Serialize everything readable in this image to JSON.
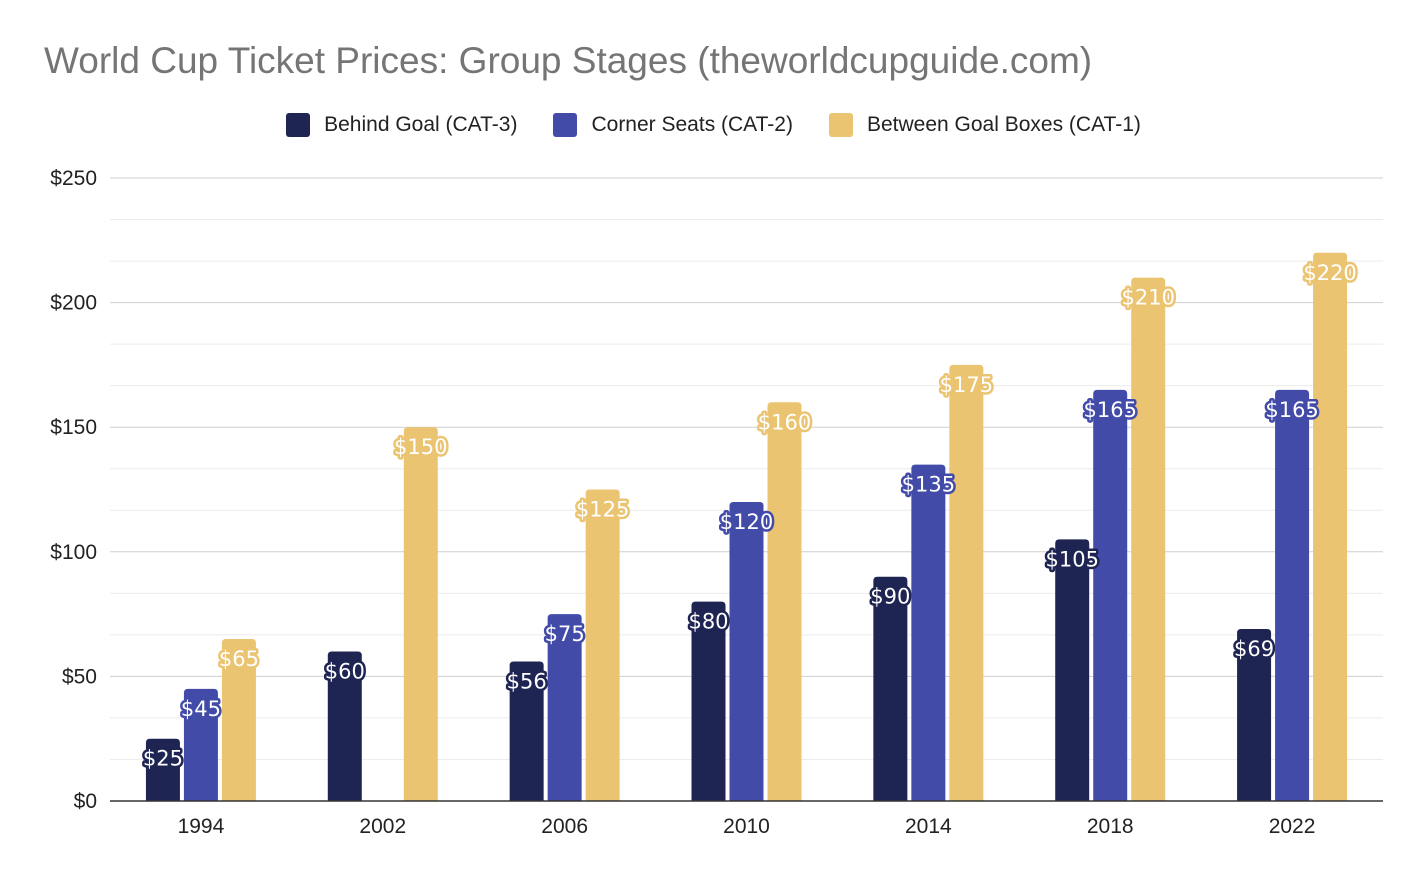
{
  "chart_data": {
    "type": "bar",
    "title": "World Cup Ticket Prices: Group Stages (theworldcupguide.com)",
    "xlabel": "",
    "ylabel": "",
    "categories": [
      "1994",
      "2002",
      "2006",
      "2010",
      "2014",
      "2018",
      "2022"
    ],
    "series": [
      {
        "name": "Behind Goal (CAT-3)",
        "color": "#1f2552",
        "values": [
          25,
          60,
          56,
          80,
          90,
          105,
          69
        ],
        "labels": [
          "$25",
          "$60",
          "$56",
          "$80",
          "$90",
          "$105",
          "$69"
        ]
      },
      {
        "name": "Corner Seats (CAT-2)",
        "color": "#424ba8",
        "values": [
          45,
          null,
          75,
          120,
          135,
          165,
          165
        ],
        "labels": [
          "$45",
          "",
          "$75",
          "$120",
          "$135",
          "$165",
          "$165"
        ]
      },
      {
        "name": "Between Goal Boxes (CAT-1)",
        "color": "#ebc471",
        "values": [
          65,
          150,
          125,
          160,
          175,
          210,
          220
        ],
        "labels": [
          "$65",
          "$150",
          "$125",
          "$160",
          "$175",
          "$210",
          "$220"
        ]
      }
    ],
    "ylim": [
      0,
      250
    ],
    "yticks": [
      0,
      50,
      100,
      150,
      200,
      250
    ],
    "ytick_labels": [
      "$0",
      "$50",
      "$100",
      "$150",
      "$200",
      "$250"
    ],
    "minor_gridlines": true,
    "grid": true,
    "legend_position": "top-center"
  }
}
